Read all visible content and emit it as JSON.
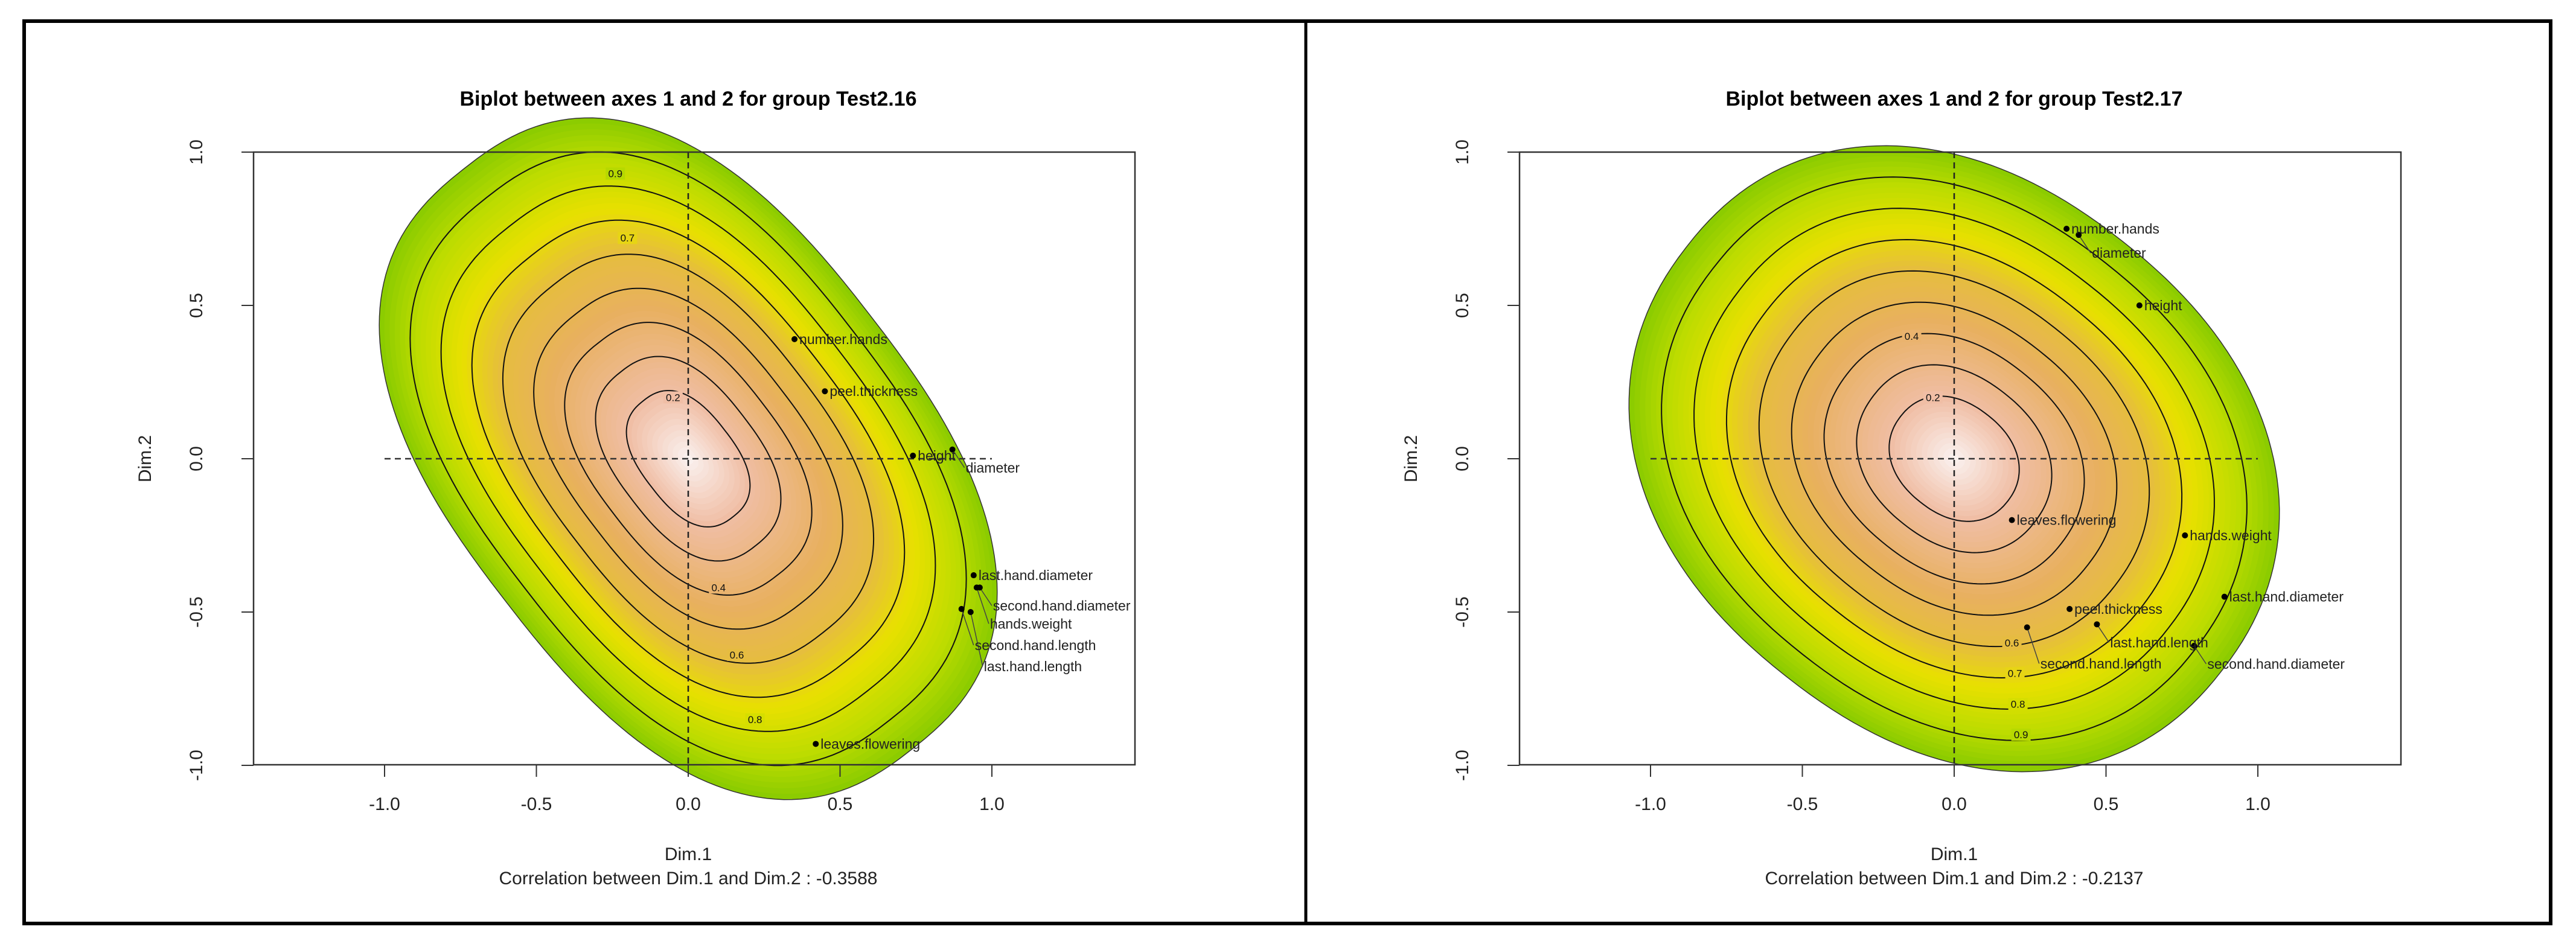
{
  "chart_data": [
    {
      "type": "scatter",
      "title": "Biplot between axes 1 and 2 for group Test2.16",
      "xlabel": "Dim.1",
      "ylabel": "Dim.2",
      "subtitle": "Correlation between Dim.1 and Dim.2 : -0.3588",
      "xlim": [
        -1.43,
        1.45
      ],
      "ylim": [
        -1.0,
        1.0
      ],
      "xticks": [
        "-1.0",
        "-0.5",
        "0.0",
        "0.5",
        "1.0"
      ],
      "xtick_values": [
        -1,
        -0.5,
        0,
        0.5,
        1
      ],
      "yticks": [
        "-1.0",
        "-0.5",
        "0.0",
        "0.5",
        "1.0"
      ],
      "ytick_values": [
        -1,
        -0.5,
        0,
        0.5,
        1
      ],
      "density": {
        "a": 1.2,
        "b": 0.76,
        "angle_deg": -52,
        "power": 2.5
      },
      "contour_levels": [
        0.2,
        0.3,
        0.4,
        0.5,
        0.6,
        0.7,
        0.8,
        0.9
      ],
      "contour_labels": [
        {
          "label": "0.9",
          "x": -0.24,
          "y": 0.93
        },
        {
          "label": "0.7",
          "x": -0.2,
          "y": 0.72
        },
        {
          "label": "0.2",
          "x": -0.05,
          "y": 0.2
        },
        {
          "label": "0.4",
          "x": 0.1,
          "y": -0.42
        },
        {
          "label": "0.6",
          "x": 0.16,
          "y": -0.64
        },
        {
          "label": "0.8",
          "x": 0.22,
          "y": -0.85
        }
      ],
      "points": [
        {
          "label": "number.hands",
          "x": 0.35,
          "y": 0.39
        },
        {
          "label": "peel.thickness",
          "x": 0.45,
          "y": 0.22
        },
        {
          "label": "height",
          "x": 0.74,
          "y": 0.01
        },
        {
          "label": "diameter",
          "x": 0.87,
          "y": 0.03
        },
        {
          "label": "last.hand.diameter",
          "x": 0.94,
          "y": -0.38
        },
        {
          "label": "second.hand.diameter",
          "x": 0.96,
          "y": -0.42
        },
        {
          "label": "hands.weight",
          "x": 0.95,
          "y": -0.42
        },
        {
          "label": "second.hand.length",
          "x": 0.9,
          "y": -0.49
        },
        {
          "label": "last.hand.length",
          "x": 0.93,
          "y": -0.5
        },
        {
          "label": "leaves.flowering",
          "x": 0.42,
          "y": -0.93
        }
      ]
    },
    {
      "type": "scatter",
      "title": "Biplot between axes 1 and 2 for group Test2.17",
      "xlabel": "Dim.1",
      "ylabel": "Dim.2",
      "subtitle": "Correlation between Dim.1 and Dim.2 : -0.2137",
      "xlim": [
        -1.43,
        1.45
      ],
      "ylim": [
        -1.0,
        1.0
      ],
      "xticks": [
        "-1.0",
        "-0.5",
        "0.0",
        "0.5",
        "1.0"
      ],
      "xtick_values": [
        -1,
        -0.5,
        0,
        0.5,
        1
      ],
      "yticks": [
        "-1.0",
        "-0.5",
        "0.0",
        "0.5",
        "1.0"
      ],
      "ytick_values": [
        -1,
        -0.5,
        0,
        0.5,
        1
      ],
      "density": {
        "a": 1.12,
        "b": 0.9,
        "angle_deg": -38,
        "power": 2.2
      },
      "contour_levels": [
        0.2,
        0.3,
        0.4,
        0.5,
        0.6,
        0.7,
        0.8,
        0.9
      ],
      "contour_labels": [
        {
          "label": "0.4",
          "x": -0.14,
          "y": 0.4
        },
        {
          "label": "0.2",
          "x": -0.07,
          "y": 0.2
        },
        {
          "label": "0.6",
          "x": 0.19,
          "y": -0.6
        },
        {
          "label": "0.7",
          "x": 0.2,
          "y": -0.7
        },
        {
          "label": "0.8",
          "x": 0.21,
          "y": -0.8
        },
        {
          "label": "0.9",
          "x": 0.22,
          "y": -0.9
        }
      ],
      "points": [
        {
          "label": "number.hands",
          "x": 0.37,
          "y": 0.75
        },
        {
          "label": "diameter",
          "x": 0.41,
          "y": 0.73
        },
        {
          "label": "height",
          "x": 0.61,
          "y": 0.5
        },
        {
          "label": "leaves.flowering",
          "x": 0.19,
          "y": -0.2
        },
        {
          "label": "hands.weight",
          "x": 0.76,
          "y": -0.25
        },
        {
          "label": "last.hand.diameter",
          "x": 0.89,
          "y": -0.45
        },
        {
          "label": "peel.thickness",
          "x": 0.38,
          "y": -0.49
        },
        {
          "label": "last.hand.length",
          "x": 0.47,
          "y": -0.54
        },
        {
          "label": "second.hand.length",
          "x": 0.24,
          "y": -0.55
        },
        {
          "label": "second.hand.diameter",
          "x": 0.79,
          "y": -0.61
        }
      ]
    }
  ],
  "colors": {
    "frame": "#000000",
    "outer": "#8ccc00",
    "yellow": "#e8e000",
    "orange": "#e8b060",
    "center": "#fbf4f4"
  }
}
